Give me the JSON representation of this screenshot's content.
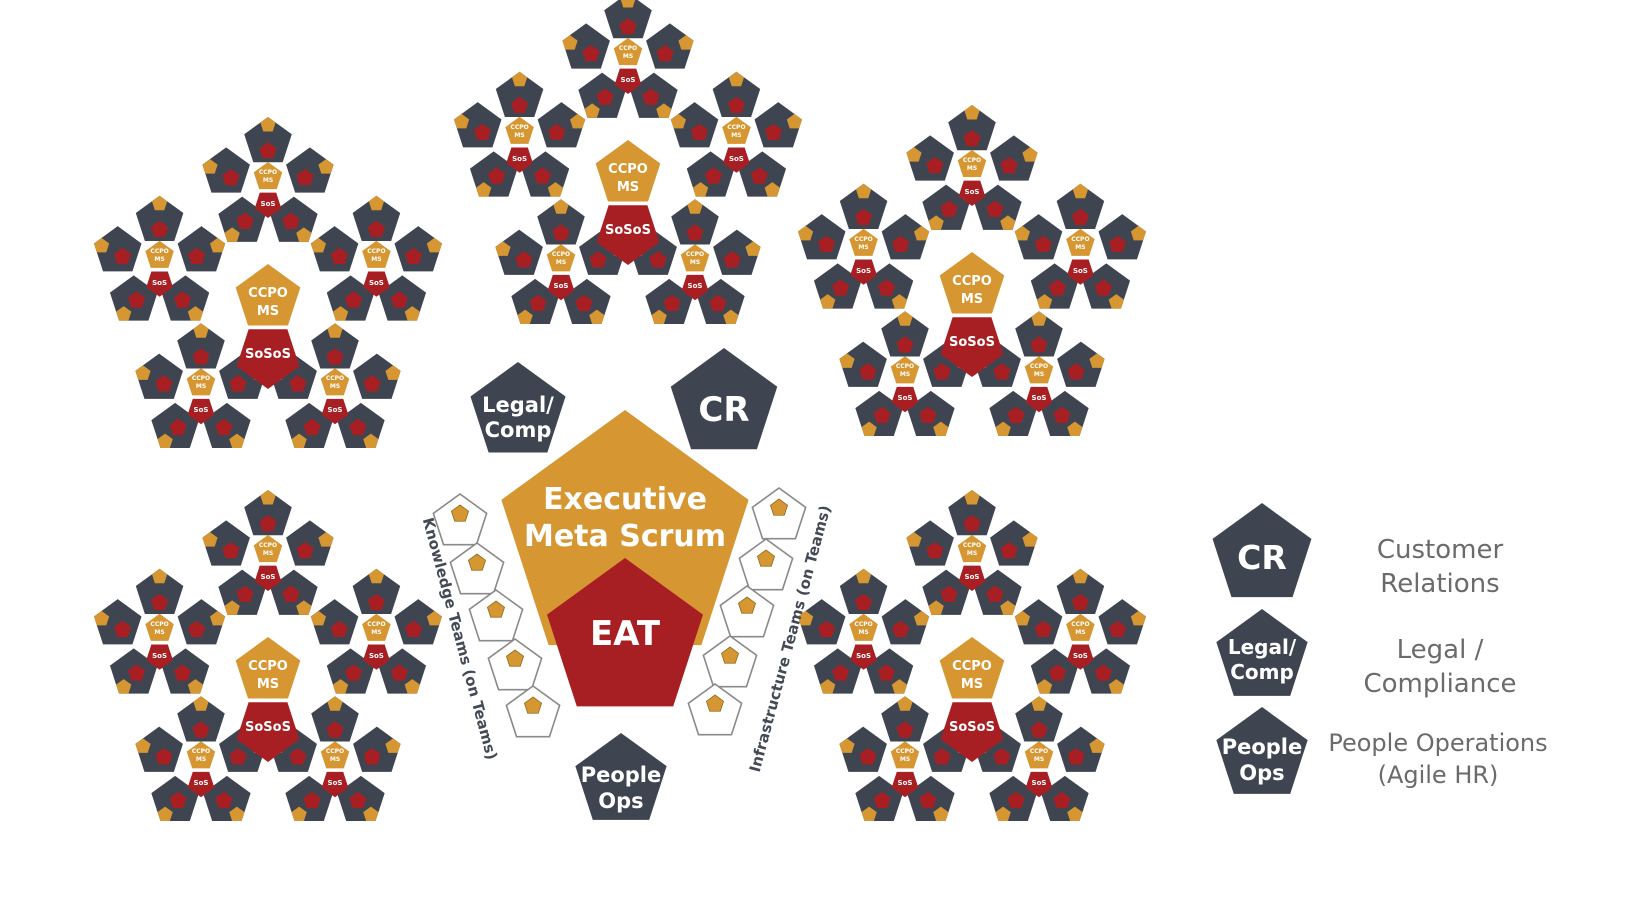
{
  "colors": {
    "slate": "#3e4551",
    "gold": "#d69733",
    "red": "#a71f23",
    "white": "#ffffff",
    "outline": "#8a8a8a",
    "legend_text": "#6b6b6b"
  },
  "sub_team": {
    "ccpo_label": "CCPO",
    "ms_label": "MS",
    "sos_label": "SoS"
  },
  "clusters": [
    {
      "ccpo_label": "CCPO",
      "ms_label": "MS",
      "sosos_label": "SoSoS"
    },
    {
      "ccpo_label": "CCPO",
      "ms_label": "MS",
      "sosos_label": "SoSoS"
    },
    {
      "ccpo_label": "CCPO",
      "ms_label": "MS",
      "sosos_label": "SoSoS"
    },
    {
      "ccpo_label": "CCPO",
      "ms_label": "MS",
      "sosos_label": "SoSoS"
    },
    {
      "ccpo_label": "CCPO",
      "ms_label": "MS",
      "sosos_label": "SoSoS"
    }
  ],
  "center": {
    "executive_line1": "Executive",
    "executive_line2": "Meta Scrum",
    "eat_label": "EAT",
    "legal_line1": "Legal/",
    "legal_line2": "Comp",
    "cr_label": "CR",
    "people_line1": "People",
    "people_line2": "Ops",
    "knowledge_teams_label": "Knowledge Teams  (on Teams)",
    "infrastructure_teams_label": "Infrastructure Teams  (on Teams)"
  },
  "legend": [
    {
      "icon_line1": "CR",
      "icon_line2": "",
      "desc_line1": "Customer",
      "desc_line2": "Relations"
    },
    {
      "icon_line1": "Legal/",
      "icon_line2": "Comp",
      "desc_line1": "Legal /",
      "desc_line2": "Compliance"
    },
    {
      "icon_line1": "People",
      "icon_line2": "Ops",
      "desc_line1": "People Operations",
      "desc_line2": "(Agile HR)"
    }
  ]
}
